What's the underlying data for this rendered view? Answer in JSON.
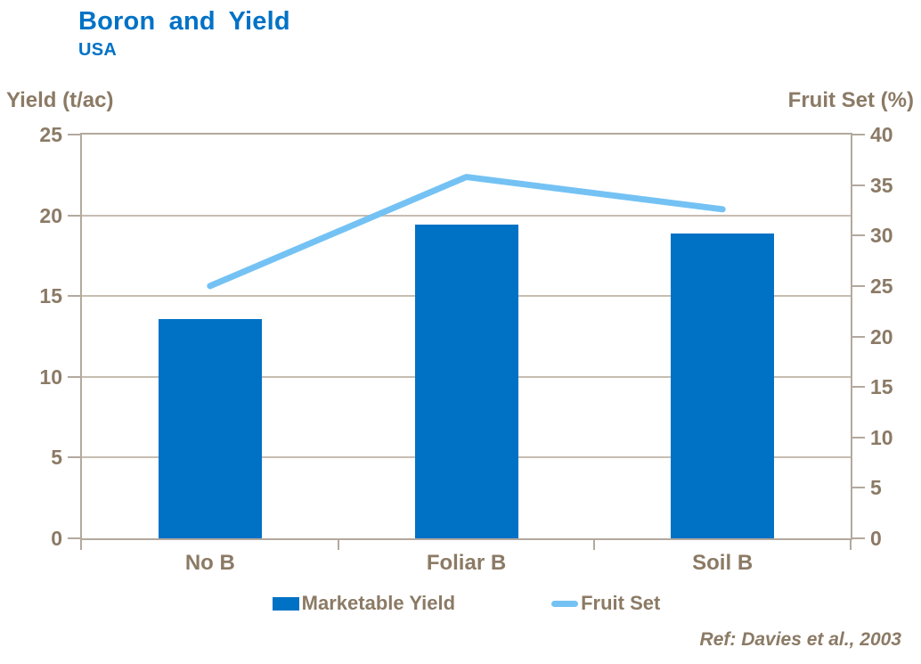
{
  "slide": {
    "title": "Boron and Yield",
    "subtitle": "USA",
    "reference": "Ref: Davies et al., 2003"
  },
  "colors": {
    "accent_blue": "#0072C6",
    "line_light_blue": "#74C2F4",
    "text_brown": "#8B7A65",
    "axis_frame": "#B3A99E",
    "gridline": "#C7BDB1"
  },
  "chart_data": {
    "type": "bar",
    "subtype": "combo bar+line, dual axis",
    "title": "Boron and Yield",
    "subtitle": "USA",
    "categories": [
      "No B",
      "Foliar B",
      "Soil B"
    ],
    "series": [
      {
        "name": "Marketable Yield",
        "type": "bar",
        "axis": "left",
        "color": "#0072C6",
        "values": [
          13.6,
          19.4,
          18.9
        ]
      },
      {
        "name": "Fruit Set",
        "type": "line",
        "axis": "right",
        "color": "#74C2F4",
        "values": [
          25.0,
          35.8,
          32.6
        ]
      }
    ],
    "axes": {
      "left": {
        "label": "Yield (t/ac)",
        "min": 0,
        "max": 25,
        "step": 5,
        "ticks": [
          25,
          20,
          15,
          10,
          5,
          0
        ]
      },
      "right": {
        "label": "Fruit Set (%)",
        "min": 0,
        "max": 40,
        "step": 5,
        "ticks": [
          40,
          35,
          30,
          25,
          20,
          15,
          10,
          5,
          0
        ]
      }
    },
    "grid": "horizontal gridlines at left-axis ticks",
    "legend_position": "bottom",
    "annotation": "Ref: Davies et al., 2003"
  }
}
